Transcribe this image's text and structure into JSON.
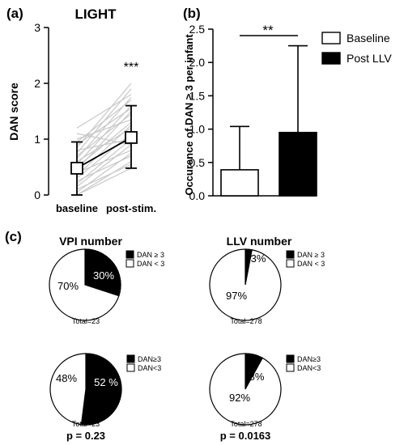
{
  "panel_labels": {
    "a": "(a)",
    "b": "(b)",
    "c": "(c)"
  },
  "chart_data": [
    {
      "type": "line",
      "panel": "a",
      "title": "LIGHT",
      "ylabel": "DAN score",
      "xlabel": "",
      "categories": [
        "baseline",
        "post-stim."
      ],
      "ylim": [
        0,
        3
      ],
      "yticks": [
        "0",
        "1",
        "2",
        "3"
      ],
      "significance": "***",
      "mean": {
        "values": [
          0.48,
          1.03
        ],
        "sd_upper": [
          0.95,
          1.6
        ],
        "sd_lower": [
          0.0,
          0.48
        ]
      },
      "individual_lines": [
        [
          0.0,
          0.48
        ],
        [
          0.0,
          0.6
        ],
        [
          0.05,
          0.75
        ],
        [
          0.1,
          0.55
        ],
        [
          0.15,
          0.9
        ],
        [
          0.2,
          1.0
        ],
        [
          0.25,
          0.7
        ],
        [
          0.3,
          1.1
        ],
        [
          0.35,
          1.25
        ],
        [
          0.4,
          0.8
        ],
        [
          0.45,
          1.5
        ],
        [
          0.5,
          1.3
        ],
        [
          0.55,
          1.6
        ],
        [
          0.6,
          1.2
        ],
        [
          0.65,
          1.75
        ],
        [
          0.7,
          1.45
        ],
        [
          0.75,
          1.9
        ],
        [
          0.8,
          1.0
        ],
        [
          0.85,
          2.0
        ],
        [
          0.9,
          1.55
        ],
        [
          0.95,
          1.7
        ],
        [
          1.0,
          1.35
        ],
        [
          1.1,
          0.9
        ],
        [
          1.2,
          1.8
        ]
      ]
    },
    {
      "type": "bar",
      "panel": "b",
      "ylabel": "Occurence of DAN ≥ 3 per infant",
      "xlabel": "",
      "ylim": [
        0,
        2.5
      ],
      "yticks": [
        "0.0",
        "0.5",
        "1.0",
        "1.5",
        "2.0",
        "2.5"
      ],
      "significance": "**",
      "series": [
        {
          "name": "Baseline",
          "value": 0.39,
          "error_upper": 1.04,
          "color": "#ffffff"
        },
        {
          "name": "Post LLV",
          "value": 0.95,
          "error_upper": 2.25,
          "color": "#000000"
        }
      ],
      "legend_position": "top-right"
    },
    {
      "type": "pie",
      "panel": "c",
      "title": "VPI number",
      "slices": [
        {
          "label": "DAN ≥ 3",
          "value": 30,
          "text": "30%",
          "color": "#000000"
        },
        {
          "label": "DAN < 3",
          "value": 70,
          "text": "70%",
          "color": "#ffffff"
        }
      ],
      "total": "Total=23"
    },
    {
      "type": "pie",
      "panel": "c",
      "title": "LLV number",
      "slices": [
        {
          "label": "DAN ≥ 3",
          "value": 3,
          "text": "3%",
          "color": "#000000"
        },
        {
          "label": "DAN < 3",
          "value": 97,
          "text": "97%",
          "color": "#ffffff"
        }
      ],
      "total": "Total=278"
    },
    {
      "type": "pie",
      "panel": "c",
      "slices": [
        {
          "label": "DAN≥3",
          "value": 52,
          "text": "52 %",
          "color": "#000000"
        },
        {
          "label": "DAN<3",
          "value": 48,
          "text": "48%",
          "color": "#ffffff"
        }
      ],
      "total": "Total=23",
      "pvalue": "p = 0.23"
    },
    {
      "type": "pie",
      "panel": "c",
      "slices": [
        {
          "label": "DAN≥3",
          "value": 8,
          "text": "8%",
          "color": "#000000"
        },
        {
          "label": "DAN<3",
          "value": 92,
          "text": "92%",
          "color": "#ffffff"
        }
      ],
      "total": "Total=278",
      "pvalue": "p = 0.0163"
    }
  ]
}
